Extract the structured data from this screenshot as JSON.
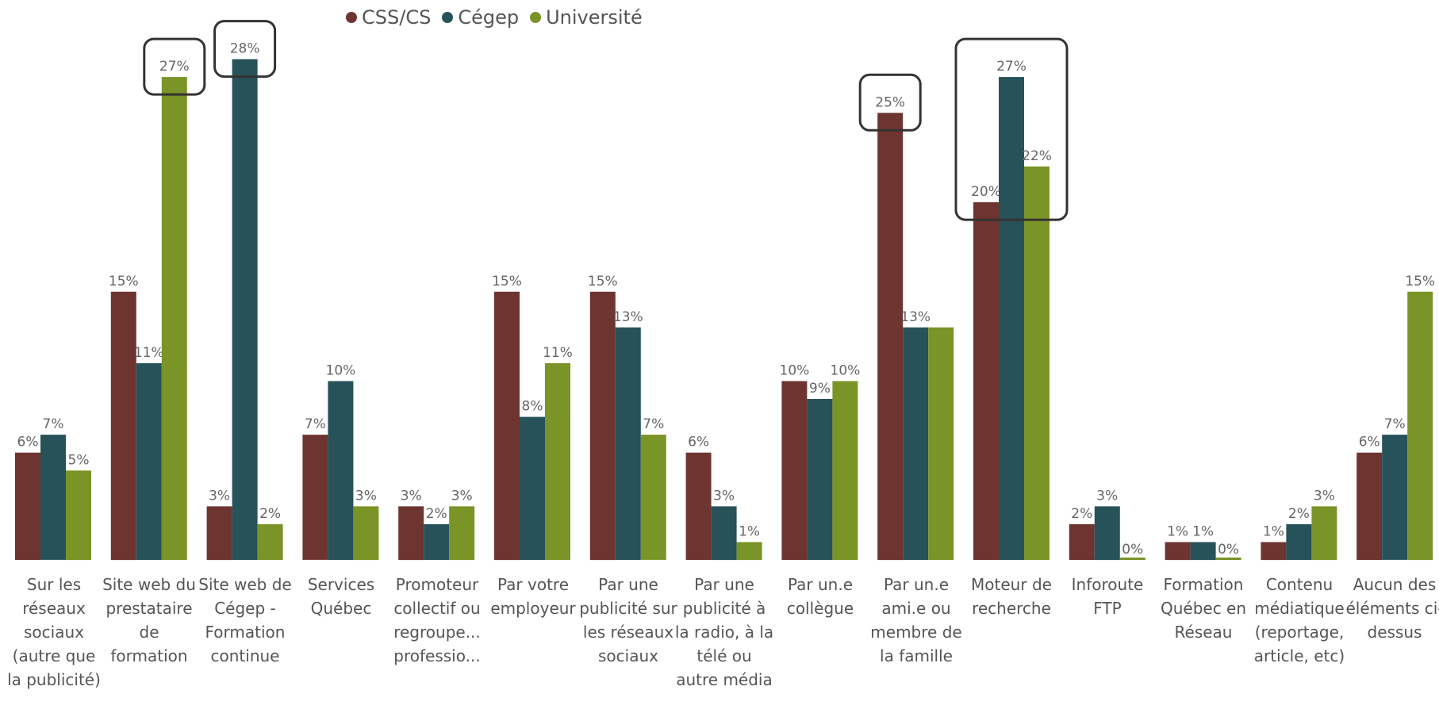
{
  "chart_data": {
    "type": "bar",
    "title": "",
    "xlabel": "",
    "ylabel": "",
    "ylim": [
      0,
      28
    ],
    "legend_position": "top-center",
    "categories": [
      "Sur les réseaux sociaux (autre que la publicité)",
      "Site web du prestataire de formation",
      "Site web de Cégep - Formation continue",
      "Services Québec",
      "Promoteur collectif ou regroupe... professio...",
      "Par votre employeur",
      "Par une publicité sur les réseaux sociaux",
      "Par une publicité à la radio, à la télé ou autre média",
      "Par un.e collègue",
      "Par un.e ami.e ou membre de la famille",
      "Moteur de recherche",
      "Inforoute FTP",
      "Formation Québec en Réseau",
      "Contenu médiatique (reportage, article, etc)",
      "Aucun des éléments ci-dessus"
    ],
    "series": [
      {
        "name": "CSS/CS",
        "color": "#6e3530",
        "values": [
          6,
          15,
          3,
          7,
          3,
          15,
          15,
          6,
          10,
          25,
          20,
          2,
          1,
          1,
          6
        ],
        "labels": [
          "6%",
          "15%",
          "3%",
          "7%",
          "3%",
          "15%",
          "15%",
          "6%",
          "10%",
          "25%",
          "20%",
          "2%",
          "1%",
          "1%",
          "6%"
        ]
      },
      {
        "name": "Cégep",
        "color": "#27525a",
        "values": [
          7,
          11,
          28,
          10,
          2,
          8,
          13,
          3,
          9,
          13,
          27,
          3,
          1,
          2,
          7
        ],
        "labels": [
          "7%",
          "11%",
          "28%",
          "10%",
          "2%",
          "8%",
          "13%",
          "3%",
          "9%",
          "13%",
          "27%",
          "3%",
          "1%",
          "2%",
          "7%"
        ]
      },
      {
        "name": "Université",
        "color": "#7a9427",
        "values": [
          5,
          27,
          2,
          3,
          3,
          11,
          7,
          1,
          10,
          13,
          22,
          0,
          0,
          3,
          15
        ],
        "labels": [
          "5%",
          "27%",
          "2%",
          "3%",
          "3%",
          "11%",
          "7%",
          "1%",
          "10%",
          "",
          "22%",
          "0%",
          "0%",
          "3%",
          "15%"
        ]
      }
    ],
    "highlights": [
      {
        "category": 1,
        "series": [
          2
        ]
      },
      {
        "category": 2,
        "series": [
          1
        ]
      },
      {
        "category": 9,
        "series": [
          0
        ]
      },
      {
        "category": 10,
        "series": [
          0,
          1,
          2
        ]
      }
    ]
  }
}
